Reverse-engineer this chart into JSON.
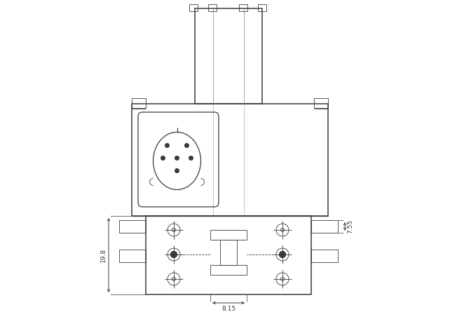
{
  "bg_color": "#ffffff",
  "line_color": "#3a3a3a",
  "dim_color": "#3a3a3a",
  "lw_thin": 0.6,
  "lw_med": 0.9,
  "lw_thick": 1.1,
  "fig_w": 6.52,
  "fig_h": 4.65,
  "dim_19_8": "19.8",
  "dim_8_15": "8.15",
  "dim_7_55": "7.55"
}
